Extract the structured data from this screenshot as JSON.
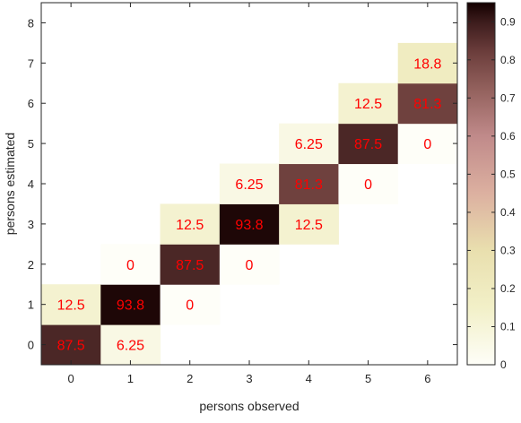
{
  "chart_data": {
    "type": "heatmap",
    "xlabel": "persons observed",
    "ylabel": "persons estimated",
    "x_categories": [
      "0",
      "1",
      "2",
      "3",
      "4",
      "5",
      "6"
    ],
    "y_categories": [
      "0",
      "1",
      "2",
      "3",
      "4",
      "5",
      "6",
      "7",
      "8"
    ],
    "xlim": [
      -0.5,
      6.5
    ],
    "ylim": [
      -0.5,
      8.5
    ],
    "cells": [
      {
        "x": 0,
        "y": 0,
        "value": 87.5,
        "label": "87.5"
      },
      {
        "x": 0,
        "y": 1,
        "value": 12.5,
        "label": "12.5"
      },
      {
        "x": 1,
        "y": 0,
        "value": 6.25,
        "label": "6.25"
      },
      {
        "x": 1,
        "y": 1,
        "value": 93.8,
        "label": "93.8"
      },
      {
        "x": 1,
        "y": 2,
        "value": 0,
        "label": "0"
      },
      {
        "x": 2,
        "y": 1,
        "value": 0,
        "label": "0"
      },
      {
        "x": 2,
        "y": 2,
        "value": 87.5,
        "label": "87.5"
      },
      {
        "x": 2,
        "y": 3,
        "value": 12.5,
        "label": "12.5"
      },
      {
        "x": 3,
        "y": 2,
        "value": 0,
        "label": "0"
      },
      {
        "x": 3,
        "y": 3,
        "value": 93.8,
        "label": "93.8"
      },
      {
        "x": 3,
        "y": 4,
        "value": 6.25,
        "label": "6.25"
      },
      {
        "x": 4,
        "y": 3,
        "value": 12.5,
        "label": "12.5"
      },
      {
        "x": 4,
        "y": 4,
        "value": 81.3,
        "label": "81.3"
      },
      {
        "x": 4,
        "y": 5,
        "value": 6.25,
        "label": "6.25"
      },
      {
        "x": 5,
        "y": 4,
        "value": 0,
        "label": "0"
      },
      {
        "x": 5,
        "y": 5,
        "value": 87.5,
        "label": "87.5"
      },
      {
        "x": 5,
        "y": 6,
        "value": 12.5,
        "label": "12.5"
      },
      {
        "x": 6,
        "y": 5,
        "value": 0,
        "label": "0"
      },
      {
        "x": 6,
        "y": 6,
        "value": 81.3,
        "label": "81.3"
      },
      {
        "x": 6,
        "y": 7,
        "value": 18.8,
        "label": "18.8"
      }
    ],
    "colorbar": {
      "range": [
        0,
        0.95
      ],
      "ticks": [
        "0",
        "0.1",
        "0.2",
        "0.3",
        "0.4",
        "0.5",
        "0.6",
        "0.7",
        "0.8",
        "0.9"
      ],
      "tick_values": [
        0,
        0.1,
        0.2,
        0.3,
        0.4,
        0.5,
        0.6,
        0.7,
        0.8,
        0.9
      ],
      "colormap_stops": [
        {
          "v": 0.0,
          "color": "#fefef8"
        },
        {
          "v": 0.15,
          "color": "#f2f0c8"
        },
        {
          "v": 0.3,
          "color": "#e9dfae"
        },
        {
          "v": 0.45,
          "color": "#dcb0a0"
        },
        {
          "v": 0.6,
          "color": "#c08a8a"
        },
        {
          "v": 0.72,
          "color": "#94625e"
        },
        {
          "v": 0.82,
          "color": "#6c3e3c"
        },
        {
          "v": 0.9,
          "color": "#3c1c1c"
        },
        {
          "v": 0.95,
          "color": "#140000"
        }
      ]
    },
    "label_color": "#ff0000",
    "grid": false,
    "legend": "colorbar-right"
  }
}
